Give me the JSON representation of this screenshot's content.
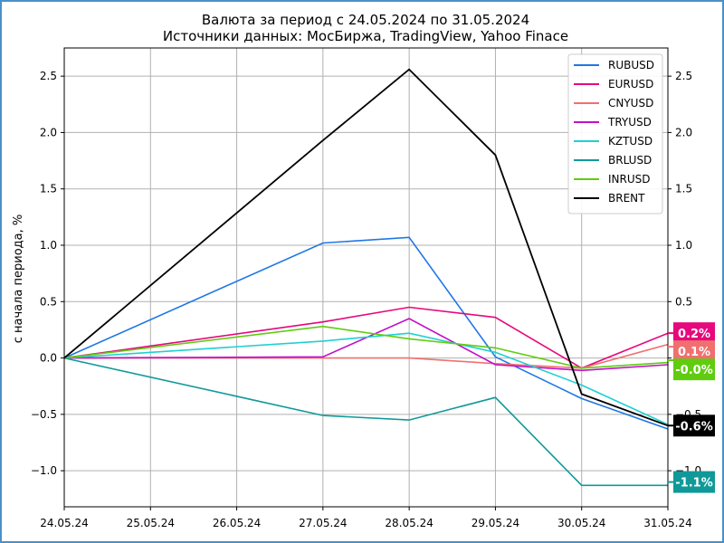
{
  "chart_data": {
    "type": "line",
    "title": "Валюта за период с 24.05.2024 по 31.05.2024",
    "subtitle": "Источники данных: МосБиржа, TradingView, Yahoo Finace",
    "ylabel": "с начала периода, %",
    "xlabel": "",
    "categories": [
      "24.05.24",
      "25.05.24",
      "26.05.24",
      "27.05.24",
      "28.05.24",
      "29.05.24",
      "30.05.24",
      "31.05.24"
    ],
    "ylim": [
      -1.32,
      2.75
    ],
    "yticks": [
      "−1.0",
      "−0.5",
      "0.0",
      "0.5",
      "1.0",
      "1.5",
      "2.0",
      "2.5"
    ],
    "yticks_right": [
      "−1.0",
      "−0.5",
      "0.0",
      "0.5",
      "1.0",
      "1.5",
      "2.0",
      "2.5"
    ],
    "ytick_values": [
      -1.0,
      -0.5,
      0.0,
      0.5,
      1.0,
      1.5,
      2.0,
      2.5
    ],
    "grid": true,
    "legend_position": "top-right",
    "series": [
      {
        "name": "RUBUSD",
        "color": "#1f77e4",
        "points": [
          [
            0,
            0
          ],
          [
            3,
            1.02
          ],
          [
            4,
            1.07
          ],
          [
            5,
            0.01
          ],
          [
            6,
            -0.36
          ],
          [
            7,
            -0.63
          ]
        ]
      },
      {
        "name": "EURUSD",
        "color": "#e6087c",
        "points": [
          [
            0,
            0
          ],
          [
            3,
            0.32
          ],
          [
            4,
            0.45
          ],
          [
            5,
            0.36
          ],
          [
            6,
            -0.09
          ],
          [
            7,
            0.22
          ]
        ]
      },
      {
        "name": "CNYUSD",
        "color": "#f07070",
        "points": [
          [
            0,
            0
          ],
          [
            3,
            0.0
          ],
          [
            4,
            0.0
          ],
          [
            5,
            -0.05
          ],
          [
            6,
            -0.09
          ],
          [
            7,
            0.12
          ]
        ]
      },
      {
        "name": "TRYUSD",
        "color": "#c010c8",
        "points": [
          [
            0,
            0
          ],
          [
            3,
            0.01
          ],
          [
            4,
            0.35
          ],
          [
            5,
            -0.06
          ],
          [
            6,
            -0.11
          ],
          [
            7,
            -0.06
          ]
        ]
      },
      {
        "name": "KZTUSD",
        "color": "#20d0d0",
        "points": [
          [
            0,
            0
          ],
          [
            3,
            0.15
          ],
          [
            4,
            0.22
          ],
          [
            5,
            0.05
          ],
          [
            6,
            -0.24
          ],
          [
            7,
            -0.59
          ]
        ]
      },
      {
        "name": "BRLUSD",
        "color": "#119999",
        "points": [
          [
            0,
            0
          ],
          [
            3,
            -0.51
          ],
          [
            4,
            -0.55
          ],
          [
            5,
            -0.35
          ],
          [
            6,
            -1.13
          ],
          [
            7,
            -1.13
          ]
        ]
      },
      {
        "name": "INRUSD",
        "color": "#60cc10",
        "points": [
          [
            0,
            0
          ],
          [
            3,
            0.28
          ],
          [
            4,
            0.17
          ],
          [
            5,
            0.09
          ],
          [
            6,
            -0.09
          ],
          [
            7,
            -0.04
          ]
        ]
      },
      {
        "name": "BRENT",
        "color": "#000000",
        "points": [
          [
            0,
            0
          ],
          [
            3,
            1.93
          ],
          [
            4,
            2.56
          ],
          [
            5,
            1.8
          ],
          [
            6,
            -0.32
          ],
          [
            7,
            -0.6
          ]
        ]
      }
    ],
    "end_labels": [
      {
        "text": "0.2%",
        "color": "#e6087c",
        "value": 0.22
      },
      {
        "text": "0.1%",
        "color": "#f07070",
        "value": 0.1
      },
      {
        "text": "-0.0%",
        "color": "#60cc10",
        "value": -0.02
      },
      {
        "text": "-0.6%",
        "color": "#000000",
        "value": -0.6
      },
      {
        "text": "-1.1%",
        "color": "#119999",
        "value": -1.1
      }
    ]
  }
}
